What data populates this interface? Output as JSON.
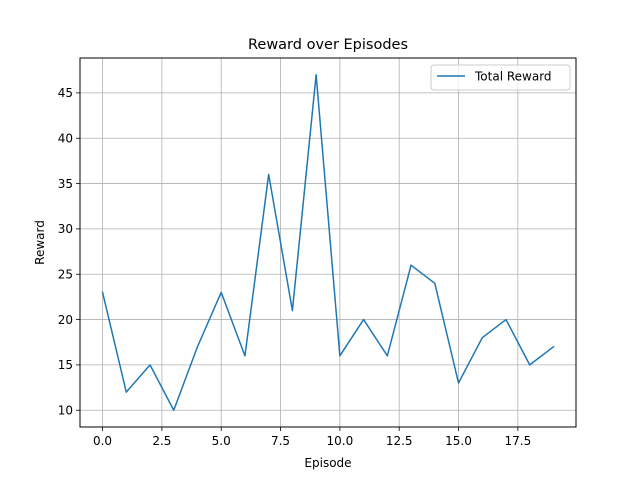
{
  "chart_data": {
    "type": "line",
    "title": "Reward over Episodes",
    "xlabel": "Episode",
    "ylabel": "Reward",
    "xlim": [
      -0.95,
      19.95
    ],
    "ylim": [
      8.15,
      48.85
    ],
    "xticks": [
      0.0,
      2.5,
      5.0,
      7.5,
      10.0,
      12.5,
      15.0,
      17.5
    ],
    "xtick_labels": [
      "0.0",
      "2.5",
      "5.0",
      "7.5",
      "10.0",
      "12.5",
      "15.0",
      "17.5"
    ],
    "yticks": [
      10,
      15,
      20,
      25,
      30,
      35,
      40,
      45
    ],
    "ytick_labels": [
      "10",
      "15",
      "20",
      "25",
      "30",
      "35",
      "40",
      "45"
    ],
    "grid": true,
    "legend_position": "top-right",
    "series": [
      {
        "name": "Total Reward",
        "color": "#1f77b4",
        "x": [
          0,
          1,
          2,
          3,
          4,
          5,
          6,
          7,
          8,
          9,
          10,
          11,
          12,
          13,
          14,
          15,
          16,
          17,
          18,
          19
        ],
        "values": [
          23,
          12,
          15,
          10,
          17,
          23,
          16,
          36,
          21,
          47,
          16,
          20,
          16,
          26,
          24,
          13,
          18,
          20,
          15,
          17
        ]
      }
    ]
  }
}
